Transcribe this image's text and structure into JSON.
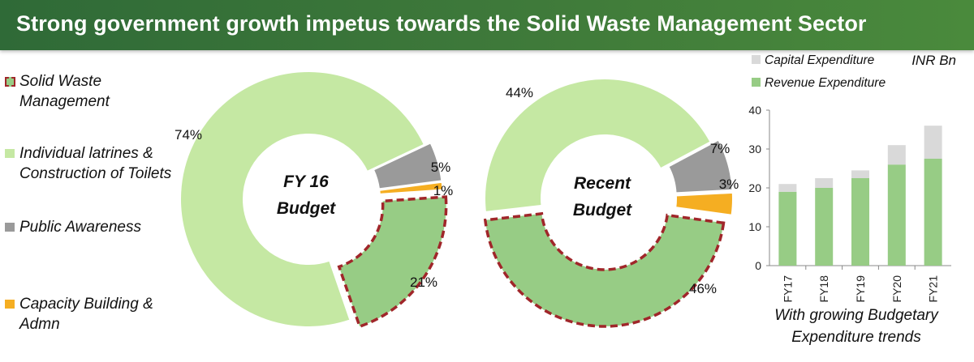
{
  "header": {
    "title": "Strong government growth impetus towards the Solid Waste Management Sector"
  },
  "legend": [
    {
      "label": "Solid Waste Management",
      "color": "#97cc85",
      "style": "dashed-red-outline"
    },
    {
      "label": "Individual latrines & Construction of Toilets",
      "color": "#c5e8a3"
    },
    {
      "label": "Public Awareness",
      "color": "#9a9a9a"
    },
    {
      "label": "Capacity Building & Admn",
      "color": "#f5ae22"
    }
  ],
  "chart_data": [
    {
      "type": "pie",
      "variant": "donut",
      "title": "FY 16 Budget",
      "slices": [
        {
          "label": "Individual latrines & Construction of Toilets",
          "value": 74,
          "display": "74%",
          "color": "#c5e8a3"
        },
        {
          "label": "Public Awareness",
          "value": 5,
          "display": "5%",
          "color": "#9a9a9a"
        },
        {
          "label": "Capacity Building & Admn",
          "value": 1,
          "display": "1%",
          "color": "#f5ae22"
        },
        {
          "label": "Solid Waste Management",
          "value": 21,
          "display": "21%",
          "color": "#97cc85",
          "highlight": true
        }
      ]
    },
    {
      "type": "pie",
      "variant": "donut",
      "title": "Recent Budget",
      "slices": [
        {
          "label": "Individual latrines & Construction of Toilets",
          "value": 44,
          "display": "44%",
          "color": "#c5e8a3"
        },
        {
          "label": "Public Awareness",
          "value": 7,
          "display": "7%",
          "color": "#9a9a9a"
        },
        {
          "label": "Capacity Building & Admn",
          "value": 3,
          "display": "3%",
          "color": "#f5ae22"
        },
        {
          "label": "Solid Waste Management",
          "value": 46,
          "display": "46%",
          "color": "#97cc85",
          "highlight": true
        }
      ]
    },
    {
      "type": "bar",
      "stacked": true,
      "unit_label": "INR Bn",
      "categories": [
        "FY17",
        "FY18",
        "FY19",
        "FY20",
        "FY21"
      ],
      "series": [
        {
          "name": "Revenue Expenditure",
          "color": "#97cc85",
          "values": [
            19,
            20,
            22.5,
            26,
            27.5
          ]
        },
        {
          "name": "Capital Expenditure",
          "color": "#d9d9d9",
          "values": [
            2,
            2.5,
            2,
            5,
            8.5
          ]
        }
      ],
      "ylim": [
        0,
        40
      ],
      "yticks": [
        0,
        10,
        20,
        30,
        40
      ],
      "caption": "With growing Budgetary Expenditure trends"
    }
  ]
}
